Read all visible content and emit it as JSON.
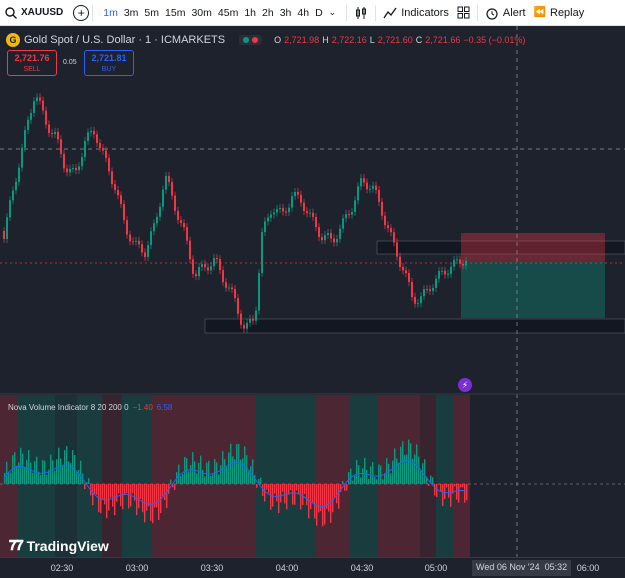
{
  "toolbar": {
    "symbol": "XAUUSD",
    "timeframes": [
      "1m",
      "3m",
      "5m",
      "15m",
      "30m",
      "45m",
      "1h",
      "2h",
      "3h",
      "4h",
      "D"
    ],
    "active_timeframe": "1m",
    "indicators_label": "Indicators",
    "alert_label": "Alert",
    "replay_label": "Replay"
  },
  "legend": {
    "gold_icon": "gold-coin-icon",
    "title": "Gold Spot / U.S. Dollar · 1 · ICMARKETS",
    "o_key": "O",
    "o_val": "2,721.98",
    "h_key": "H",
    "h_val": "2,722.16",
    "l_key": "L",
    "l_val": "2,721.60",
    "c_key": "C",
    "c_val": "2,721.66",
    "change": "−0.35 (−0.01%)",
    "status_colors": [
      "#089981",
      "#f23645"
    ]
  },
  "trade": {
    "sell_price": "2,721.76",
    "sell_label": "SELL",
    "spread": "0.05",
    "buy_price": "2,721.81",
    "buy_label": "BUY"
  },
  "indicator": {
    "name": "Nova Volume Indicator 8 20 200 0",
    "value1": "−1.40",
    "value2": "6.58"
  },
  "watermark": "TradingView",
  "time_axis": {
    "ticks": [
      "02:30",
      "03:00",
      "03:30",
      "04:00",
      "04:30",
      "05:00",
      "06:00"
    ],
    "crosshair_date": "Wed 06 Nov '24",
    "crosshair_time": "05:32"
  },
  "colors": {
    "up": "#089981",
    "down": "#f23645",
    "background": "#1e222d",
    "accent": "#2962ff"
  }
}
